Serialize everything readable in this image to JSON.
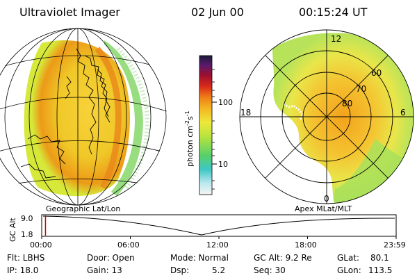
{
  "header": {
    "instrument": "Ultraviolet Imager",
    "date": "02 Jun 00",
    "time": "00:15:24 UT"
  },
  "colorbar": {
    "unit_label": "photon cm",
    "unit_exp1": "-2",
    "unit_mid": "s",
    "unit_exp2": "-1",
    "tick_100": "100",
    "tick_10": "10"
  },
  "polar_plot": {
    "lt_top": "12",
    "lt_left": "18",
    "lt_right": "6",
    "lt_bottom": "0",
    "lat_60": "60",
    "lat_70": "70",
    "lat_80": "80"
  },
  "timeline": {
    "left_label": "Geographic Lat/Lon",
    "right_label": "Apex MLat/MLT",
    "axis_title": "GC Alt",
    "y_top": "9.0",
    "y_bottom": "1.8",
    "ticks": [
      "00:00",
      "06:00",
      "12:00",
      "18:00",
      "23:59"
    ],
    "current_time_fraction": 0.0107
  },
  "status": {
    "flt": "Flt: LBHS",
    "ip": "IP: 18.0",
    "door": "Door: Open",
    "gain": "Gain: 13",
    "mode": "Mode: Normal",
    "dsp_label": "Dsp:",
    "dsp_value": "5.2",
    "gc_alt": "GC Alt: 9.2 Re",
    "seq": "Seq: 30",
    "glat_label": "GLat:",
    "glat_value": "80.1",
    "glon_label": "GLon:",
    "glon_value": "113.5"
  },
  "colors": {
    "accent_marker": "#cc0000",
    "grid": "#000000"
  }
}
